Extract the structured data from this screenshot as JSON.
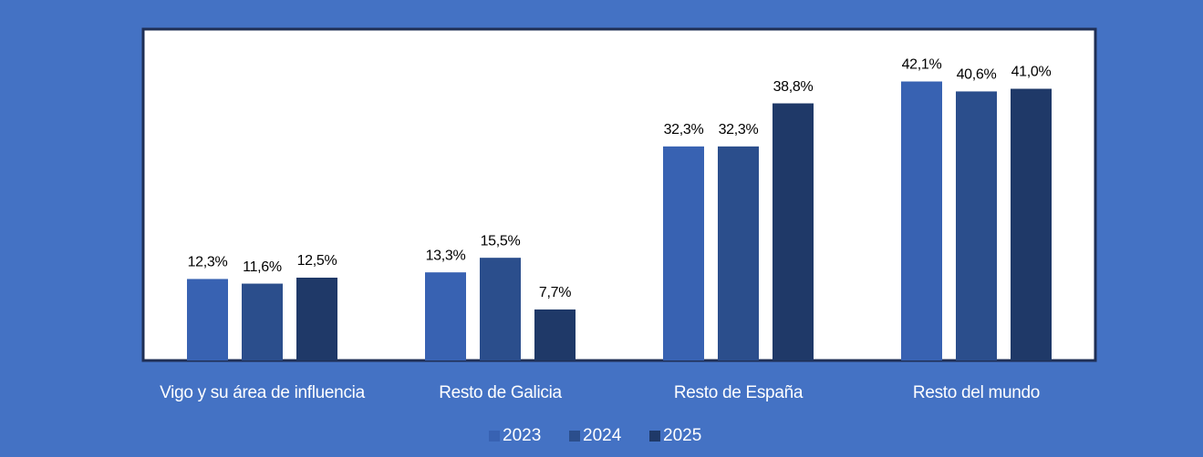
{
  "chart_data": {
    "type": "bar",
    "categories": [
      "Vigo y su área de influencia",
      "Resto de Galicia",
      "Resto de España",
      "Resto del mundo"
    ],
    "series": [
      {
        "name": "2023",
        "color": "#3862b2",
        "values": [
          12.3,
          13.3,
          32.3,
          42.1
        ],
        "value_labels": [
          "12,3%",
          "13,3%",
          "32,3%",
          "42,1%"
        ]
      },
      {
        "name": "2024",
        "color": "#2b4e8c",
        "values": [
          11.6,
          15.5,
          32.3,
          40.6
        ],
        "value_labels": [
          "11,6%",
          "15,5%",
          "32,3%",
          "40,6%"
        ]
      },
      {
        "name": "2025",
        "color": "#1f3968",
        "values": [
          12.5,
          7.7,
          38.8,
          41.0
        ],
        "value_labels": [
          "12,5%",
          "7,7%",
          "38,8%",
          "41,0%"
        ]
      }
    ],
    "ylim": [
      0,
      50
    ],
    "legend": "bottom"
  }
}
